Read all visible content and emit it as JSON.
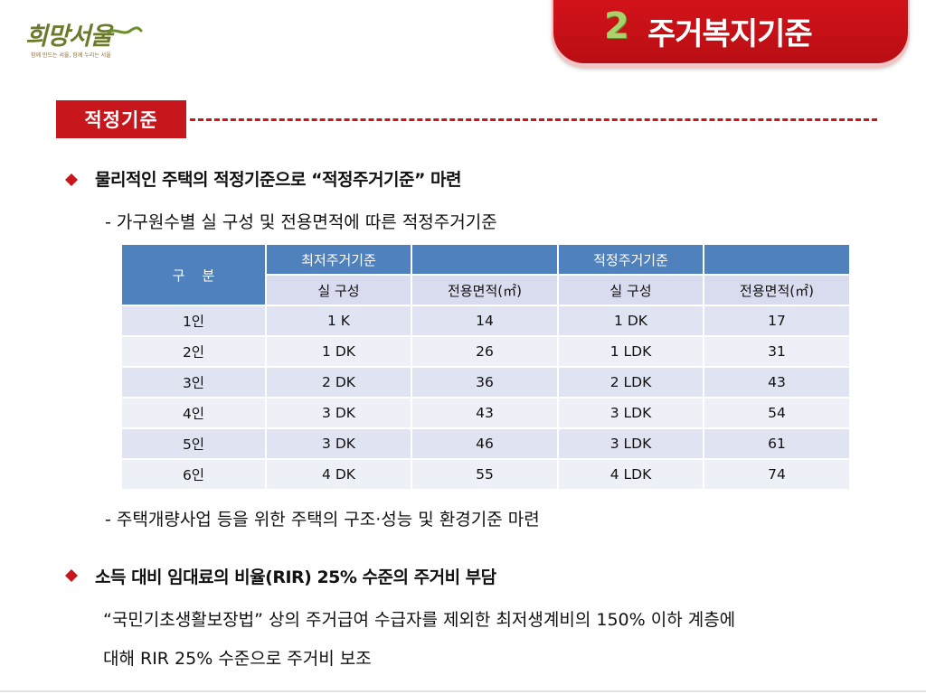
{
  "logo": {
    "name": "희망서울",
    "tagline": "함께 만드는 서울, 함께 누리는 서울"
  },
  "title": {
    "number": "2",
    "text": "주거복지기준"
  },
  "section": {
    "badge": "적정기준"
  },
  "bullets": [
    {
      "heading": "물리적인 주택의 적정기준으로 “적정주거기준” 마련",
      "sub": "- 가구원수별 실 구성 및 전용면적에 따른 적정주거기준"
    },
    {
      "heading": "소득 대비 임대료의 비율(RIR) 25% 수준의 주거비 부담",
      "line1": "“국민기초생활보장법” 상의 주거급여 수급자를 제외한 최저생계비의 150% 이하 계층에",
      "line2": "대해 RIR 25% 수준으로 주거비 보조"
    }
  ],
  "after_table_note": "- 주택개량사업 등을 위한 주택의 구조·성능 및 환경기준 마련",
  "table": {
    "corner": "구    분",
    "group_min": "최저주거기준",
    "group_proper": "적정주거기준",
    "col_room": "실 구성",
    "col_area": "전용면적(㎡)",
    "rows": [
      {
        "label": "1인",
        "min_room": "1 K",
        "min_area": "14",
        "pro_room": "1 DK",
        "pro_area": "17"
      },
      {
        "label": "2인",
        "min_room": "1 DK",
        "min_area": "26",
        "pro_room": "1 LDK",
        "pro_area": "31"
      },
      {
        "label": "3인",
        "min_room": "2 DK",
        "min_area": "36",
        "pro_room": "2 LDK",
        "pro_area": "43"
      },
      {
        "label": "4인",
        "min_room": "3 DK",
        "min_area": "43",
        "pro_room": "3 LDK",
        "pro_area": "54"
      },
      {
        "label": "5인",
        "min_room": "3 DK",
        "min_area": "46",
        "pro_room": "3 LDK",
        "pro_area": "61"
      },
      {
        "label": "6인",
        "min_room": "4 DK",
        "min_area": "55",
        "pro_room": "4 LDK",
        "pro_area": "74"
      }
    ]
  },
  "colors": {
    "accent_red": "#c8161d",
    "header_blue": "#4f81bd",
    "row_light": "#dfe3f2",
    "title_number_green": "#a8d36b"
  }
}
